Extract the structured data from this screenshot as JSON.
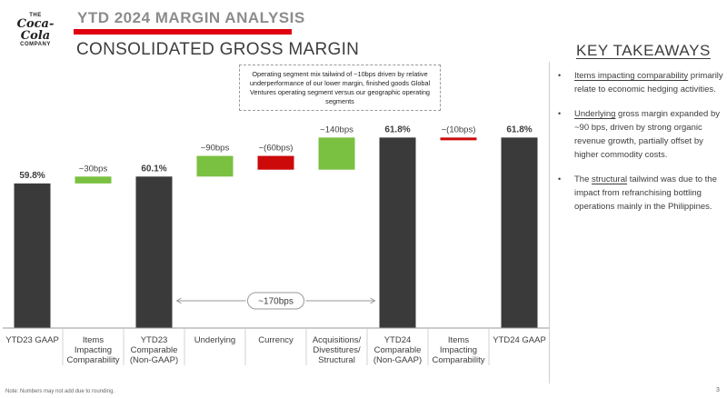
{
  "logo": {
    "the": "THE",
    "brand": "Coca-Cola",
    "company": "COMPANY"
  },
  "header": {
    "title": "YTD 2024 MARGIN ANALYSIS",
    "subtitle": "CONSOLIDATED GROSS MARGIN",
    "accent": "#e0000f"
  },
  "callout": {
    "text": "Operating segment mix tailwind of ~10bps driven by relative underperformance of our lower margin, finished goods Global Ventures operating segment versus our geographic operating segments"
  },
  "takeaways": {
    "title": "KEY TAKEAWAYS",
    "items": [
      {
        "bullet": "•",
        "underlined": "Items impacting comparability",
        "rest": " primarily relate to economic hedging activities."
      },
      {
        "bullet": "•",
        "underlined": "Underlying",
        "rest": " gross margin expanded by ~90 bps, driven by strong organic revenue growth, partially offset by higher commodity costs."
      },
      {
        "bullet": "•",
        "pre": "The ",
        "underlined": "structural",
        "rest": " tailwind was due to the impact from refranchising bottling operations mainly in the Philippines."
      }
    ]
  },
  "footnote": "Note: Numbers may not add due to rounding.",
  "page_number": "3",
  "chart_data": {
    "type": "bar",
    "subtype": "waterfall",
    "unit": "% gross margin",
    "ylim": [
      53.5,
      63.2
    ],
    "grid": false,
    "colors": {
      "total": "#3a3a3a",
      "increase": "#7ac142",
      "decrease": "#cc0a0a"
    },
    "categories": [
      "YTD23 GAAP",
      "Items Impacting Comparability",
      "YTD23 Comparable (Non-GAAP)",
      "Underlying",
      "Currency",
      "Acquisitions/ Divestitures/ Structural",
      "YTD24 Comparable (Non-GAAP)",
      "Items Impacting Comparability",
      "YTD24 GAAP"
    ],
    "tick_lines": [
      [
        "YTD23 GAAP"
      ],
      [
        "Items",
        "Impacting",
        "Comparability"
      ],
      [
        "YTD23",
        "Comparable",
        "(Non-GAAP)"
      ],
      [
        "Underlying"
      ],
      [
        "Currency"
      ],
      [
        "Acquisitions/",
        "Divestitures/",
        "Structural"
      ],
      [
        "YTD24",
        "Comparable",
        "(Non-GAAP)"
      ],
      [
        "Items",
        "Impacting",
        "Comparability"
      ],
      [
        "YTD24 GAAP"
      ]
    ],
    "bars": [
      {
        "kind": "total",
        "low": 53.5,
        "high": 59.8,
        "label": "59.8%"
      },
      {
        "kind": "increase",
        "low": 59.8,
        "high": 60.1,
        "label": "~30bps"
      },
      {
        "kind": "total",
        "low": 53.5,
        "high": 60.1,
        "label": "60.1%"
      },
      {
        "kind": "increase",
        "low": 60.1,
        "high": 61.0,
        "label": "~90bps"
      },
      {
        "kind": "decrease",
        "low": 60.4,
        "high": 61.0,
        "label": "~(60bps)"
      },
      {
        "kind": "increase",
        "low": 60.4,
        "high": 61.8,
        "label": "~140bps"
      },
      {
        "kind": "total",
        "low": 53.5,
        "high": 61.8,
        "label": "61.8%"
      },
      {
        "kind": "decrease",
        "low": 61.7,
        "high": 61.8,
        "label": "~(10bps)"
      },
      {
        "kind": "total",
        "low": 53.5,
        "high": 61.8,
        "label": "61.8%"
      }
    ],
    "bracket": {
      "from": "YTD23 Comparable (Non-GAAP)",
      "to": "YTD24 Comparable (Non-GAAP)",
      "label": "~170bps"
    }
  }
}
